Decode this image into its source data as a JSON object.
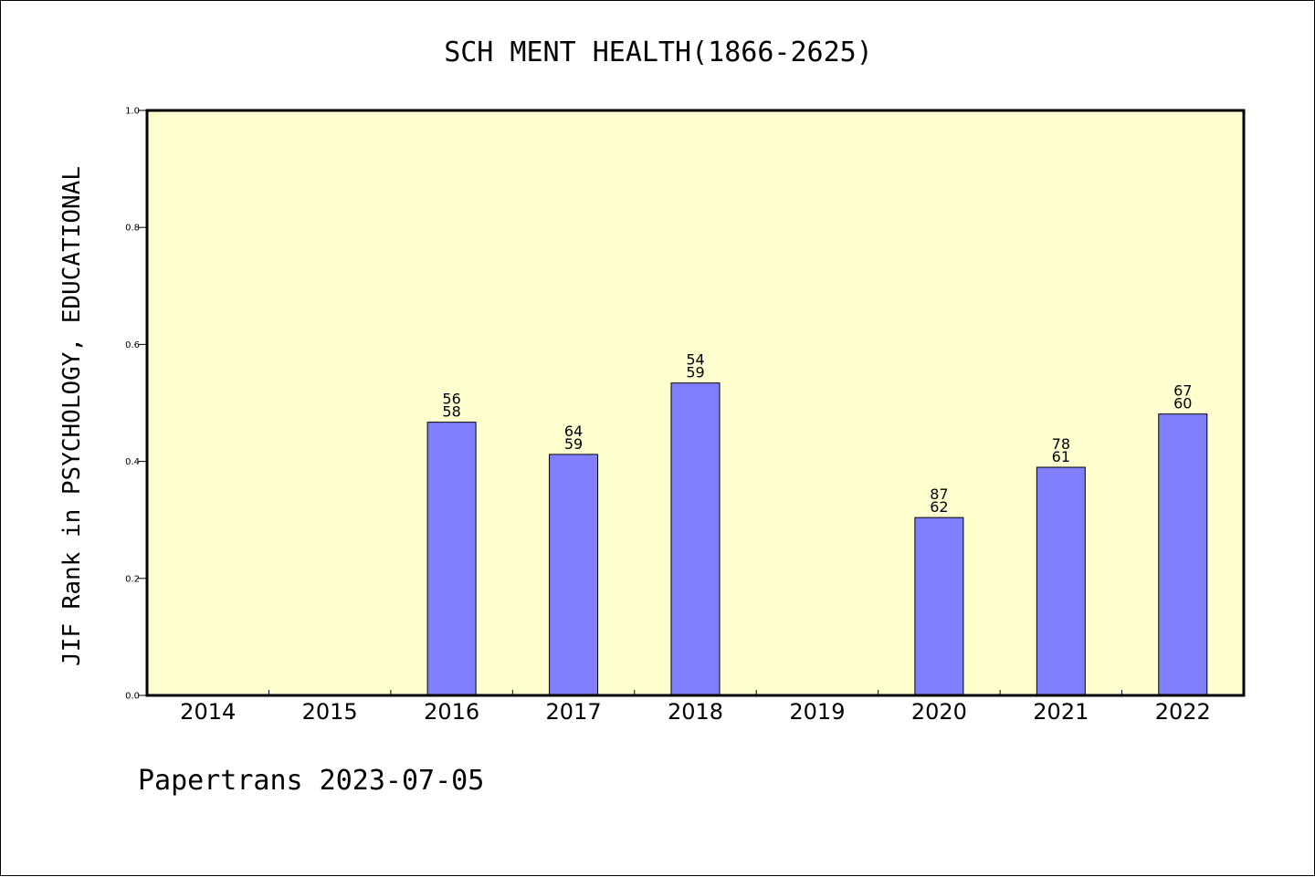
{
  "chart_data": {
    "type": "bar",
    "title": "SCH MENT HEALTH(1866-2625)",
    "xlabel": "",
    "ylabel": "JIF Rank in PSYCHOLOGY, EDUCATIONAL",
    "ylim": [
      0,
      1.0
    ],
    "yticks": [
      "0.0",
      "0.2",
      "0.4",
      "0.6",
      "0.8",
      "1.0"
    ],
    "grid": false,
    "categories": [
      "2014",
      "2015",
      "2016",
      "2017",
      "2018",
      "2019",
      "2020",
      "2021",
      "2022"
    ],
    "values": [
      null,
      null,
      0.467,
      0.412,
      0.534,
      null,
      0.304,
      0.39,
      0.481
    ],
    "labels_top": [
      null,
      null,
      "56",
      "64",
      "54",
      null,
      "87",
      "78",
      "67"
    ],
    "labels_bottom": [
      null,
      null,
      "58",
      "59",
      "59",
      null,
      "62",
      "61",
      "60"
    ],
    "plot_background": "#ffffd0",
    "bar_color": "#8080ff"
  },
  "footer": "Papertrans 2023-07-05"
}
